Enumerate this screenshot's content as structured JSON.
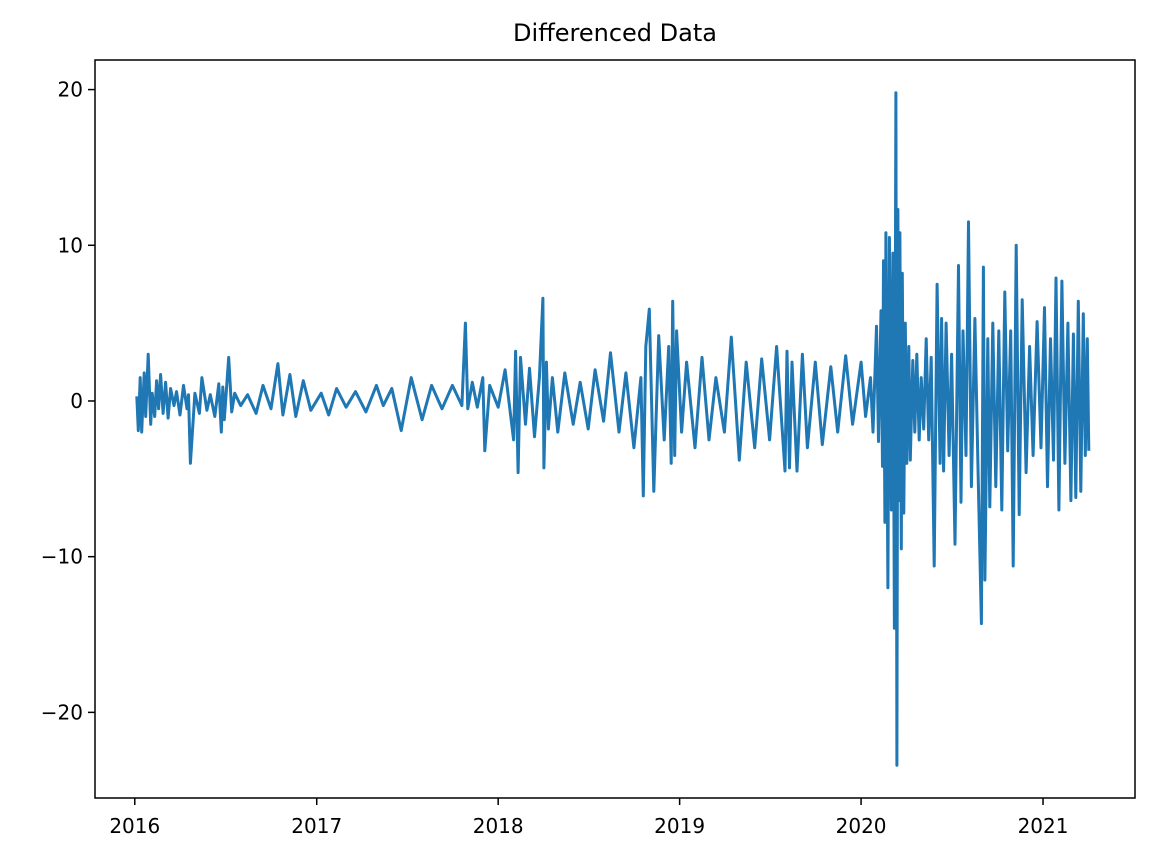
{
  "chart_data": {
    "type": "line",
    "title": "Differenced Data",
    "xlabel": "",
    "ylabel": "",
    "x_ticks": [
      "2016",
      "2017",
      "2018",
      "2019",
      "2020",
      "2021"
    ],
    "y_ticks": [
      20,
      10,
      0,
      -10,
      -20
    ],
    "xlim": [
      "2015-10-13",
      "2021-07-05"
    ],
    "ylim": [
      -25.5,
      21.9
    ],
    "grid": false,
    "legend": "none",
    "colors": {
      "series": "#1f77b4",
      "axes": "#000000",
      "background": "#ffffff"
    },
    "series": [
      {
        "x": [
          "2016-01-05",
          "2016-01-08",
          "2016-01-12",
          "2016-01-15",
          "2016-01-20",
          "2016-01-23",
          "2016-01-28",
          "2016-02-02",
          "2016-02-05",
          "2016-02-10",
          "2016-02-14",
          "2016-02-18",
          "2016-02-22",
          "2016-02-27",
          "2016-03-03",
          "2016-03-08",
          "2016-03-13",
          "2016-03-20",
          "2016-03-25",
          "2016-04-01",
          "2016-04-08",
          "2016-04-15",
          "2016-04-18",
          "2016-04-22",
          "2016-05-01",
          "2016-05-10",
          "2016-05-15",
          "2016-05-25",
          "2016-06-01",
          "2016-06-10",
          "2016-06-18",
          "2016-06-23",
          "2016-06-26",
          "2016-06-29",
          "2016-07-08",
          "2016-07-14",
          "2016-07-20",
          "2016-08-01",
          "2016-08-15",
          "2016-09-01",
          "2016-09-15",
          "2016-10-01",
          "2016-10-15",
          "2016-10-25",
          "2016-11-08",
          "2016-11-20",
          "2016-12-05",
          "2016-12-20",
          "2017-01-10",
          "2017-01-25",
          "2017-02-10",
          "2017-03-01",
          "2017-03-20",
          "2017-04-10",
          "2017-05-01",
          "2017-05-15",
          "2017-06-01",
          "2017-06-20",
          "2017-07-10",
          "2017-08-01",
          "2017-08-20",
          "2017-09-10",
          "2017-10-01",
          "2017-10-20",
          "2017-10-27",
          "2017-11-01",
          "2017-11-10",
          "2017-11-20",
          "2017-12-01",
          "2017-12-05",
          "2017-12-15",
          "2018-01-01",
          "2018-01-15",
          "2018-02-01",
          "2018-02-05",
          "2018-02-10",
          "2018-02-15",
          "2018-02-25",
          "2018-03-05",
          "2018-03-15",
          "2018-03-25",
          "2018-04-01",
          "2018-04-03",
          "2018-04-08",
          "2018-04-12",
          "2018-04-20",
          "2018-05-01",
          "2018-05-15",
          "2018-06-01",
          "2018-06-15",
          "2018-07-01",
          "2018-07-15",
          "2018-08-01",
          "2018-08-15",
          "2018-09-01",
          "2018-09-15",
          "2018-10-01",
          "2018-10-15",
          "2018-10-20",
          "2018-10-25",
          "2018-11-01",
          "2018-11-10",
          "2018-11-20",
          "2018-12-01",
          "2018-12-10",
          "2018-12-15",
          "2018-12-18",
          "2018-12-22",
          "2018-12-26",
          "2019-01-05",
          "2019-01-15",
          "2019-02-01",
          "2019-02-15",
          "2019-03-01",
          "2019-03-15",
          "2019-04-01",
          "2019-04-15",
          "2019-05-01",
          "2019-05-15",
          "2019-06-01",
          "2019-06-15",
          "2019-07-01",
          "2019-07-15",
          "2019-08-01",
          "2019-08-05",
          "2019-08-10",
          "2019-08-15",
          "2019-08-25",
          "2019-09-05",
          "2019-09-15",
          "2019-10-01",
          "2019-10-15",
          "2019-11-01",
          "2019-11-15",
          "2019-12-01",
          "2019-12-15",
          "2020-01-01",
          "2020-01-10",
          "2020-01-20",
          "2020-01-25",
          "2020-02-01",
          "2020-02-05",
          "2020-02-10",
          "2020-02-13",
          "2020-02-15",
          "2020-02-18",
          "2020-02-20",
          "2020-02-24",
          "2020-02-27",
          "2020-03-02",
          "2020-03-05",
          "2020-03-08",
          "2020-03-11",
          "2020-03-13",
          "2020-03-15",
          "2020-03-17",
          "2020-03-19",
          "2020-03-22",
          "2020-03-24",
          "2020-03-27",
          "2020-03-30",
          "2020-04-02",
          "2020-04-06",
          "2020-04-09",
          "2020-04-14",
          "2020-04-18",
          "2020-04-22",
          "2020-04-27",
          "2020-05-01",
          "2020-05-06",
          "2020-05-11",
          "2020-05-16",
          "2020-05-21",
          "2020-05-27",
          "2020-06-02",
          "2020-06-08",
          "2020-06-11",
          "2020-06-15",
          "2020-06-20",
          "2020-06-26",
          "2020-07-01",
          "2020-07-08",
          "2020-07-15",
          "2020-07-20",
          "2020-07-24",
          "2020-07-30",
          "2020-08-04",
          "2020-08-10",
          "2020-08-17",
          "2020-08-23",
          "2020-08-30",
          "2020-09-03",
          "2020-09-06",
          "2020-09-12",
          "2020-09-16",
          "2020-09-22",
          "2020-09-28",
          "2020-10-04",
          "2020-10-10",
          "2020-10-16",
          "2020-10-22",
          "2020-10-28",
          "2020-11-02",
          "2020-11-08",
          "2020-11-14",
          "2020-11-20",
          "2020-11-28",
          "2020-12-05",
          "2020-12-12",
          "2020-12-20",
          "2020-12-28",
          "2021-01-04",
          "2021-01-10",
          "2021-01-16",
          "2021-01-22",
          "2021-01-27",
          "2021-02-02",
          "2021-02-08",
          "2021-02-14",
          "2021-02-20",
          "2021-02-26",
          "2021-03-03",
          "2021-03-08",
          "2021-03-13",
          "2021-03-18",
          "2021-03-23",
          "2021-03-27",
          "2021-03-31",
          "2021-04-03"
        ],
        "y": [
          0.3,
          -1.9,
          1.5,
          -2.0,
          1.8,
          -1.0,
          3.0,
          -1.5,
          0.5,
          -1.0,
          1.3,
          -0.5,
          1.7,
          -0.8,
          1.2,
          -1.1,
          0.8,
          -0.3,
          0.6,
          -0.9,
          1.0,
          -0.5,
          0.4,
          -4.0,
          0.5,
          -0.8,
          1.5,
          -0.6,
          0.4,
          -1.0,
          1.1,
          -2.0,
          0.9,
          -1.2,
          2.8,
          -0.7,
          0.5,
          -0.3,
          0.4,
          -0.8,
          1.0,
          -0.5,
          2.4,
          -0.9,
          1.7,
          -1.0,
          1.3,
          -0.6,
          0.5,
          -0.9,
          0.8,
          -0.4,
          0.6,
          -0.7,
          1.0,
          -0.3,
          0.8,
          -1.9,
          1.5,
          -1.2,
          1.0,
          -0.5,
          1.0,
          -0.3,
          5.0,
          -0.5,
          1.2,
          -0.4,
          1.5,
          -3.2,
          1.0,
          -0.4,
          2.0,
          -2.5,
          3.2,
          -4.6,
          2.8,
          -1.5,
          2.1,
          -2.3,
          1.5,
          6.6,
          -4.3,
          2.5,
          -1.8,
          1.5,
          -2.0,
          1.8,
          -1.5,
          1.2,
          -1.8,
          2.0,
          -1.3,
          3.1,
          -2.0,
          1.8,
          -3.0,
          1.5,
          -6.1,
          3.5,
          5.9,
          -5.8,
          4.2,
          -2.5,
          3.5,
          -4.0,
          6.4,
          -3.5,
          4.5,
          -2.0,
          2.5,
          -3.0,
          2.8,
          -2.5,
          1.5,
          -2.0,
          4.1,
          -3.8,
          2.5,
          -3.0,
          2.7,
          -2.5,
          3.5,
          -4.5,
          3.2,
          -4.3,
          2.5,
          -4.5,
          3.0,
          -3.0,
          2.5,
          -2.8,
          2.2,
          -2.0,
          2.9,
          -1.5,
          2.5,
          -1.0,
          1.5,
          -2.0,
          4.8,
          -2.6,
          5.8,
          -4.2,
          9.0,
          -7.8,
          10.8,
          -12.0,
          10.5,
          -7.0,
          9.5,
          -14.6,
          19.8,
          -23.4,
          12.3,
          -6.4,
          10.8,
          -9.5,
          8.2,
          -7.2,
          5.0,
          -4.0,
          3.5,
          -3.8,
          2.6,
          -2.0,
          3.0,
          -2.5,
          1.5,
          -1.8,
          4.0,
          -2.5,
          2.8,
          -10.6,
          7.5,
          -4.0,
          5.3,
          -4.5,
          5.0,
          -3.5,
          3.0,
          -9.2,
          8.7,
          -6.5,
          4.5,
          -3.5,
          11.5,
          -5.5,
          5.3,
          -4.0,
          -14.3,
          8.6,
          -11.5,
          4.0,
          -6.8,
          5.0,
          -5.5,
          4.5,
          -7.0,
          7.0,
          -3.2,
          4.5,
          -10.6,
          10.0,
          -7.3,
          6.5,
          -4.6,
          3.5,
          -3.5,
          5.1,
          -3.0,
          6.0,
          -5.5,
          4.0,
          -3.8,
          7.9,
          -7.0,
          7.7,
          -4.0,
          5.0,
          -6.4,
          4.3,
          -6.2,
          6.4,
          -5.8,
          5.6,
          -3.5,
          4.0,
          -3.2
        ]
      }
    ]
  }
}
